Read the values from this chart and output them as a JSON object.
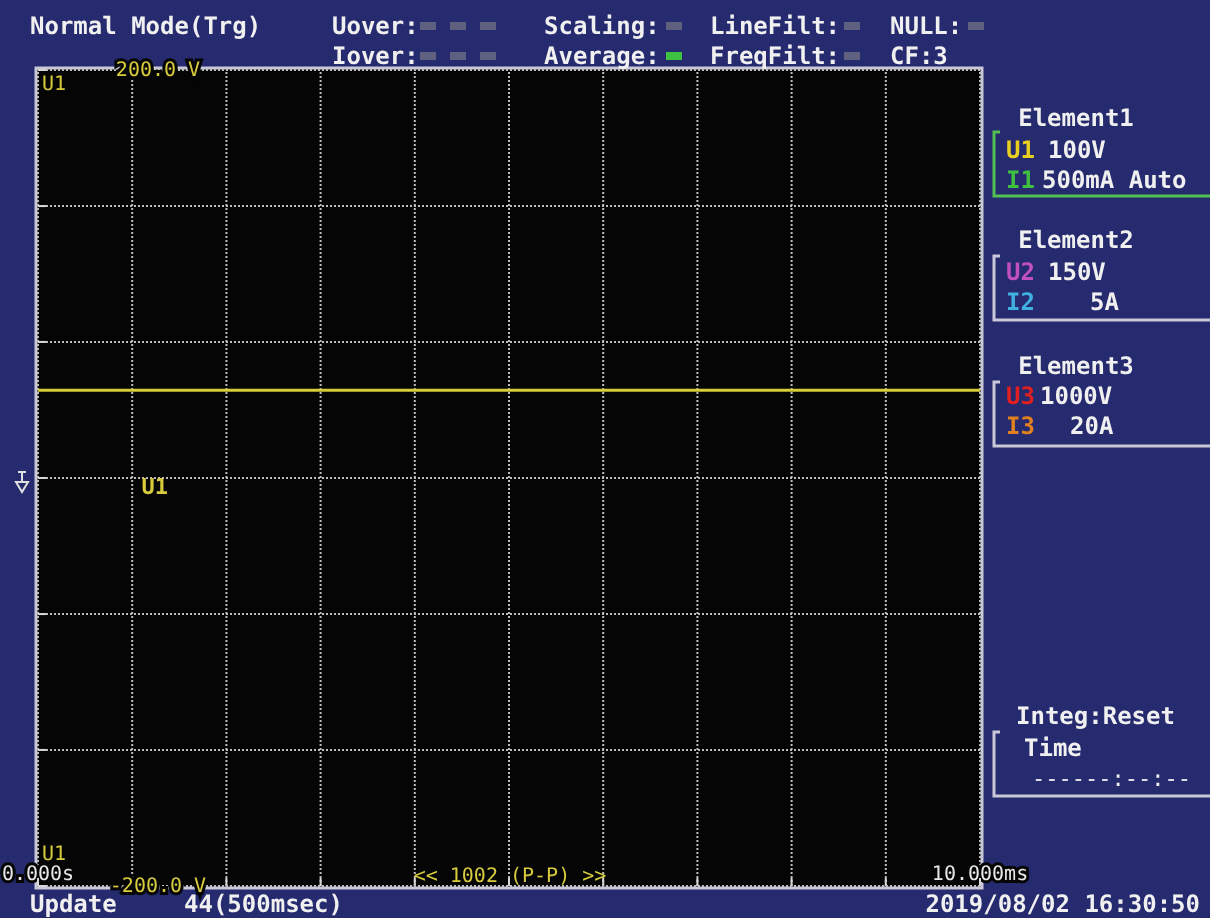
{
  "chart_data": {
    "type": "line",
    "x": [
      0,
      10
    ],
    "series": [
      {
        "name": "U1",
        "color": "#d8cc3c",
        "values": [
          43,
          43
        ]
      }
    ],
    "xlim": [
      0,
      10
    ],
    "ylim": [
      -200,
      200
    ],
    "xticks": [
      {
        "value": 0,
        "label": "0.000s"
      },
      {
        "value": 1,
        "label": null
      },
      {
        "value": 2,
        "label": null
      },
      {
        "value": 3,
        "label": null
      },
      {
        "value": 4,
        "label": null
      },
      {
        "value": 5,
        "label": null
      },
      {
        "value": 6,
        "label": null
      },
      {
        "value": 7,
        "label": null
      },
      {
        "value": 8,
        "label": null
      },
      {
        "value": 9,
        "label": null
      },
      {
        "value": 10,
        "label": "10.000ms"
      }
    ],
    "yticks": [
      {
        "value": -200,
        "label": "-200.0 V"
      },
      {
        "value": -133.3,
        "label": null
      },
      {
        "value": -66.7,
        "label": null
      },
      {
        "value": 0,
        "label": null
      },
      {
        "value": 66.7,
        "label": null
      },
      {
        "value": 133.3,
        "label": null
      },
      {
        "value": 200,
        "label": "200.0 V"
      }
    ],
    "grid": true,
    "line_style": "solid",
    "marker": "none",
    "annotations": [
      "Normal Mode(Trg)",
      "Uover:",
      "Iover:",
      "Scaling:",
      "Average:",
      "LineFilt:",
      "FreqFilt:",
      "NULL:",
      "CF:3",
      "Element1",
      "U1",
      "100V",
      "I1",
      "500mA Auto",
      "Element2",
      "U2",
      "150V",
      "I2",
      "5A",
      "Element3",
      "U3",
      "1000V",
      "I3",
      "20A",
      "Integ:Reset",
      "Time",
      "------:--:--",
      "U1",
      "U1",
      "<< 1002 (P-P) >>",
      "Update",
      "44(500msec)",
      "2019/08/02 16:30:50"
    ]
  }
}
